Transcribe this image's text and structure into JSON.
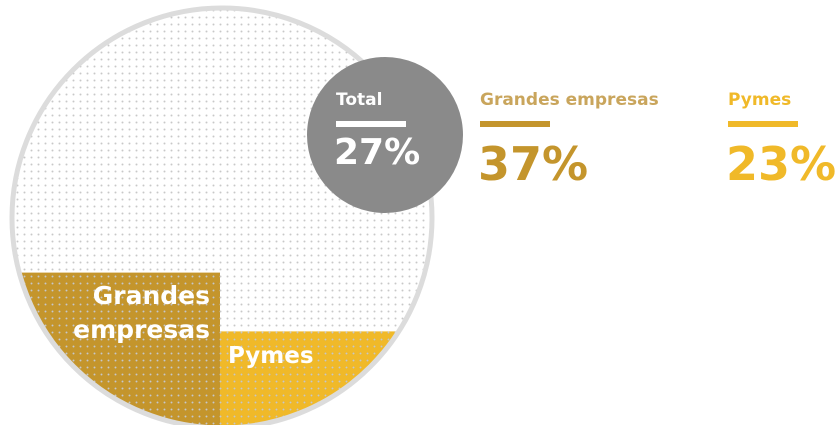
{
  "chart_data": {
    "type": "circle-fill",
    "total": {
      "name": "Total",
      "values": [
        27
      ],
      "value_labels": [
        "27%"
      ],
      "color": "#8a8a8a"
    },
    "series": [
      {
        "name": "Grandes empresas",
        "color": "#c4952c",
        "values": [
          37
        ],
        "value_labels": [
          "37%"
        ]
      },
      {
        "name": "Pymes",
        "color": "#f0b929",
        "values": [
          23
        ],
        "value_labels": [
          "23%"
        ]
      }
    ]
  }
}
